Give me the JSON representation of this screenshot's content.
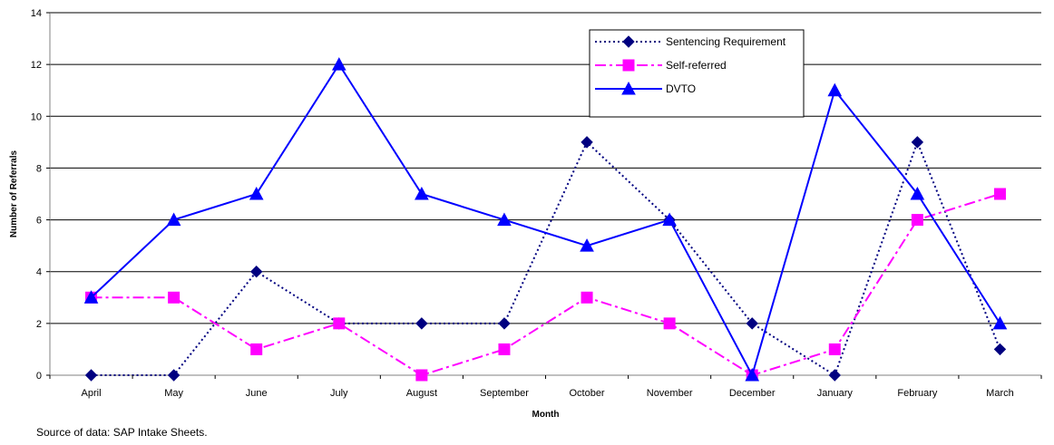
{
  "chart_data": {
    "type": "line",
    "title": "",
    "xlabel": "Month",
    "ylabel": "Number of Referrals",
    "ylim": [
      0,
      14
    ],
    "yticks": [
      0,
      2,
      4,
      6,
      8,
      10,
      12,
      14
    ],
    "grid": "horizontal",
    "legend_position": "top-right",
    "categories": [
      "April",
      "May",
      "June",
      "July",
      "August",
      "September",
      "October",
      "November",
      "December",
      "January",
      "February",
      "March"
    ],
    "series": [
      {
        "name": "Sentencing Requirement",
        "values": [
          0,
          0,
          4,
          2,
          2,
          2,
          9,
          6,
          2,
          0,
          9,
          1
        ],
        "color": "#000080",
        "line": "dotted",
        "marker": "diamond"
      },
      {
        "name": "Self-referred",
        "values": [
          3,
          3,
          1,
          2,
          0,
          1,
          3,
          2,
          0,
          1,
          6,
          7
        ],
        "color": "#FF00FF",
        "line": "dash-dot",
        "marker": "square"
      },
      {
        "name": "DVTO",
        "values": [
          3,
          6,
          7,
          12,
          7,
          6,
          5,
          6,
          0,
          11,
          7,
          2
        ],
        "color": "#0000FF",
        "line": "solid",
        "marker": "triangle"
      }
    ]
  },
  "source_note": "Source of data:  SAP Intake Sheets."
}
